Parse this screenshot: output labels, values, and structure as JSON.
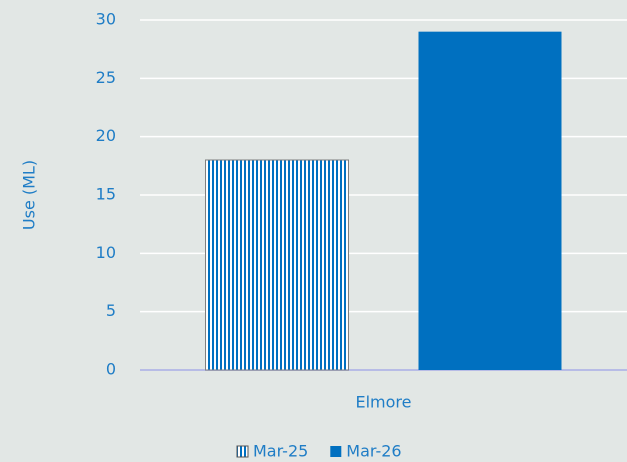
{
  "chart_data": {
    "type": "bar",
    "y_label": "Use (ML)",
    "categories": [
      "Elmore"
    ],
    "series": [
      {
        "name": "Mar-25",
        "color": "#0070c0",
        "pattern": "vertical-stripes",
        "values": [
          18
        ]
      },
      {
        "name": "Mar-26",
        "color": "#0070c0",
        "values": [
          29
        ]
      }
    ],
    "ylim": [
      0,
      30
    ],
    "yticks": [
      0,
      5,
      10,
      15,
      20,
      25,
      30
    ],
    "grid": true,
    "legend": "bottom"
  }
}
